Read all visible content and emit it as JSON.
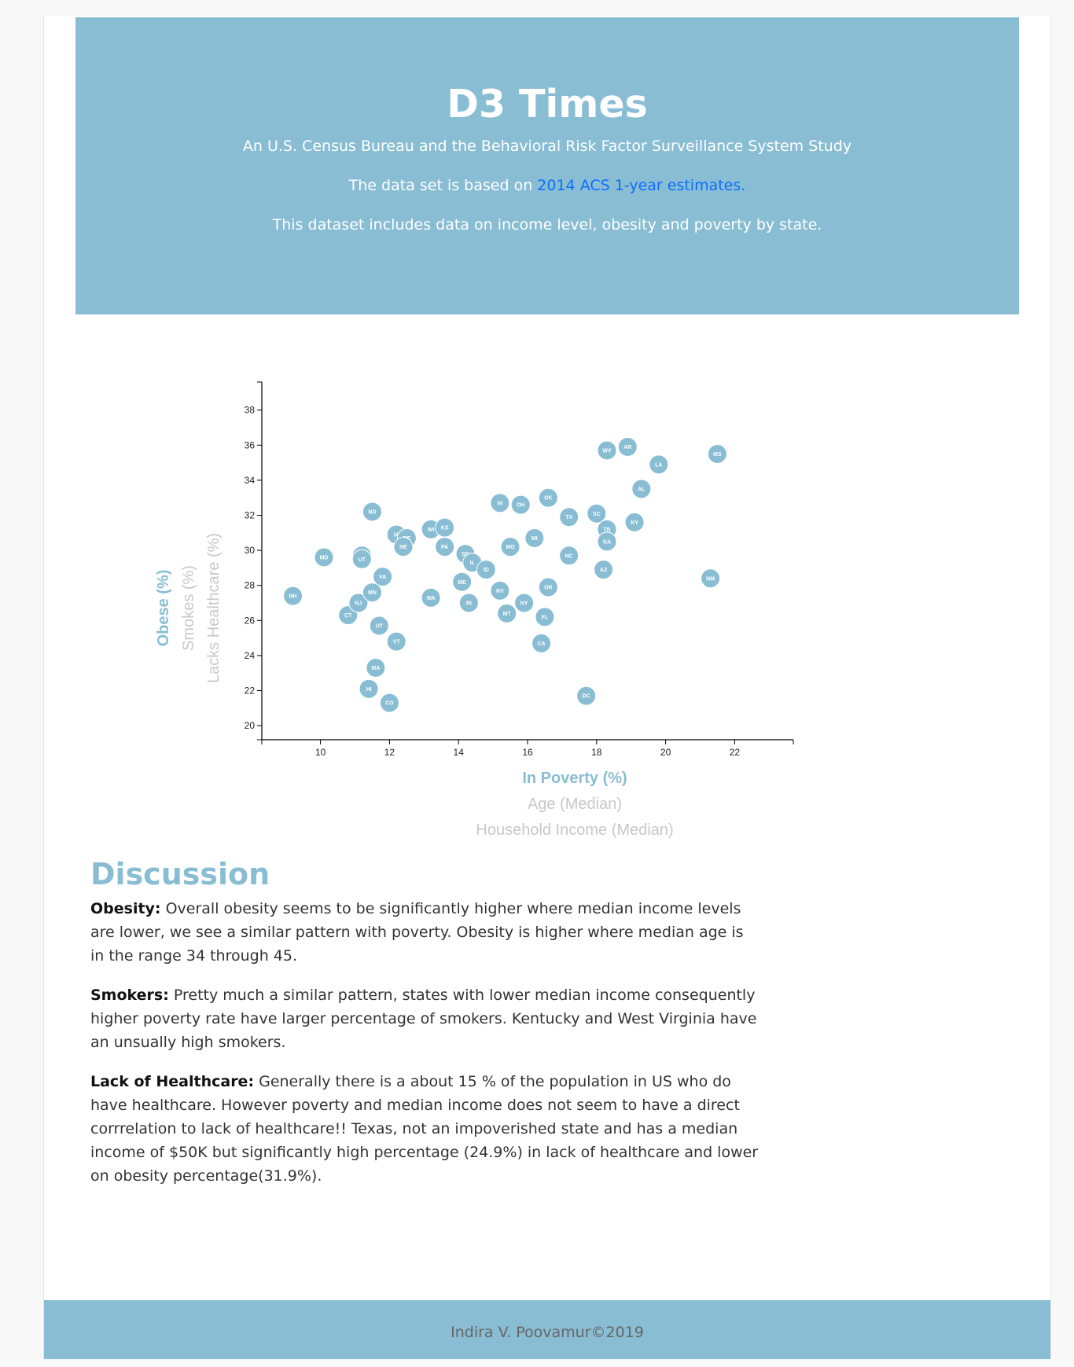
{
  "header": {
    "title": "D3 Times",
    "subtitle": "An U.S. Census Bureau and the Behavioral Risk Factor Surveillance System Study",
    "dataset_prefix": "The data set is based on",
    "dataset_link": "2014 ACS 1-year estimates.",
    "description": "This dataset includes data on income level, obesity and poverty by state."
  },
  "chart_data": {
    "type": "scatter",
    "x_labels": [
      "In Poverty (%)",
      "Age (Median)",
      "Household Income (Median)"
    ],
    "y_labels": [
      "Obese (%)",
      "Smokes (%)",
      "Lacks Healthcare (%)"
    ],
    "active_x": "In Poverty (%)",
    "active_y": "Obese (%)",
    "xlim": [
      8.3,
      23.7
    ],
    "ylim": [
      19.2,
      39.6
    ],
    "x_ticks": [
      10,
      12,
      14,
      16,
      18,
      20,
      22
    ],
    "y_ticks": [
      20,
      22,
      24,
      26,
      28,
      30,
      32,
      34,
      36,
      38
    ],
    "grid": false,
    "colors": {
      "point": "#89bdd3",
      "label": "#ffffff",
      "active_axis": "#89bdd3",
      "inactive_axis": "#c8c8c8"
    },
    "points": [
      {
        "abbr": "NH",
        "x": 9.2,
        "y": 27.4
      },
      {
        "abbr": "MD",
        "x": 10.1,
        "y": 29.6
      },
      {
        "abbr": "CT",
        "x": 10.8,
        "y": 26.3
      },
      {
        "abbr": "NJ",
        "x": 11.1,
        "y": 27.0
      },
      {
        "abbr": "AK",
        "x": 11.2,
        "y": 29.7
      },
      {
        "abbr": "UT",
        "x": 11.2,
        "y": 29.5
      },
      {
        "abbr": "ND",
        "x": 11.5,
        "y": 32.2
      },
      {
        "abbr": "MN",
        "x": 11.5,
        "y": 27.6
      },
      {
        "abbr": "HI",
        "x": 11.4,
        "y": 22.1
      },
      {
        "abbr": "MA",
        "x": 11.6,
        "y": 23.3
      },
      {
        "abbr": "UT",
        "x": 11.7,
        "y": 25.7
      },
      {
        "abbr": "VA",
        "x": 11.8,
        "y": 28.5
      },
      {
        "abbr": "CO",
        "x": 12.0,
        "y": 21.3
      },
      {
        "abbr": "IA",
        "x": 12.2,
        "y": 30.9
      },
      {
        "abbr": "VT",
        "x": 12.2,
        "y": 24.8
      },
      {
        "abbr": "DE",
        "x": 12.5,
        "y": 30.7
      },
      {
        "abbr": "NE",
        "x": 12.4,
        "y": 30.2
      },
      {
        "abbr": "WI",
        "x": 13.2,
        "y": 31.2
      },
      {
        "abbr": "KS",
        "x": 13.6,
        "y": 31.3
      },
      {
        "abbr": "PA",
        "x": 13.6,
        "y": 30.2
      },
      {
        "abbr": "WA",
        "x": 13.2,
        "y": 27.3
      },
      {
        "abbr": "ME",
        "x": 14.1,
        "y": 28.2
      },
      {
        "abbr": "SD",
        "x": 14.2,
        "y": 29.8
      },
      {
        "abbr": "IL",
        "x": 14.4,
        "y": 29.3
      },
      {
        "abbr": "RI",
        "x": 14.3,
        "y": 27.0
      },
      {
        "abbr": "ID",
        "x": 14.8,
        "y": 28.9
      },
      {
        "abbr": "IN",
        "x": 15.2,
        "y": 32.7
      },
      {
        "abbr": "NV",
        "x": 15.2,
        "y": 27.7
      },
      {
        "abbr": "MO",
        "x": 15.5,
        "y": 30.2
      },
      {
        "abbr": "MT",
        "x": 15.4,
        "y": 26.4
      },
      {
        "abbr": "OH",
        "x": 15.8,
        "y": 32.6
      },
      {
        "abbr": "NY",
        "x": 15.9,
        "y": 27.0
      },
      {
        "abbr": "MI",
        "x": 16.2,
        "y": 30.7
      },
      {
        "abbr": "CA",
        "x": 16.4,
        "y": 24.7
      },
      {
        "abbr": "OK",
        "x": 16.6,
        "y": 33.0
      },
      {
        "abbr": "OR",
        "x": 16.6,
        "y": 27.9
      },
      {
        "abbr": "FL",
        "x": 16.5,
        "y": 26.2
      },
      {
        "abbr": "TX",
        "x": 17.2,
        "y": 31.9
      },
      {
        "abbr": "NC",
        "x": 17.2,
        "y": 29.7
      },
      {
        "abbr": "DC",
        "x": 17.7,
        "y": 21.7
      },
      {
        "abbr": "SC",
        "x": 18.0,
        "y": 32.1
      },
      {
        "abbr": "AZ",
        "x": 18.2,
        "y": 28.9
      },
      {
        "abbr": "TN",
        "x": 18.3,
        "y": 31.2
      },
      {
        "abbr": "GA",
        "x": 18.3,
        "y": 30.5
      },
      {
        "abbr": "WV",
        "x": 18.3,
        "y": 35.7
      },
      {
        "abbr": "AR",
        "x": 18.9,
        "y": 35.9
      },
      {
        "abbr": "KY",
        "x": 19.1,
        "y": 31.6
      },
      {
        "abbr": "AL",
        "x": 19.3,
        "y": 33.5
      },
      {
        "abbr": "LA",
        "x": 19.8,
        "y": 34.9
      },
      {
        "abbr": "NM",
        "x": 21.3,
        "y": 28.4
      },
      {
        "abbr": "MS",
        "x": 21.5,
        "y": 35.5
      }
    ]
  },
  "discussion": {
    "title": "Discussion",
    "items": [
      {
        "label": "Obesity:",
        "text": "Overall obesity seems to be significantly higher where median income levels are lower, we see a similar pattern with poverty. Obesity is higher where median age is in the range 34 through 45."
      },
      {
        "label": "Smokers:",
        "text": "Pretty much a similar pattern, states with lower median income consequently higher poverty rate have larger percentage of smokers. Kentucky and West Virginia have an unsually high smokers."
      },
      {
        "label": "Lack of Healthcare:",
        "text": "Generally there is a about 15 % of the population in US who do have healthcare. However poverty and median income does not seem to have a direct corrrelation to lack of healthcare!! Texas, not an impoverished state and has a median income of $50K but significantly high percentage (24.9%) in lack of healthcare and lower on obesity percentage(31.9%)."
      }
    ]
  },
  "footer": {
    "text": "Indira V. Poovamur©2019"
  }
}
